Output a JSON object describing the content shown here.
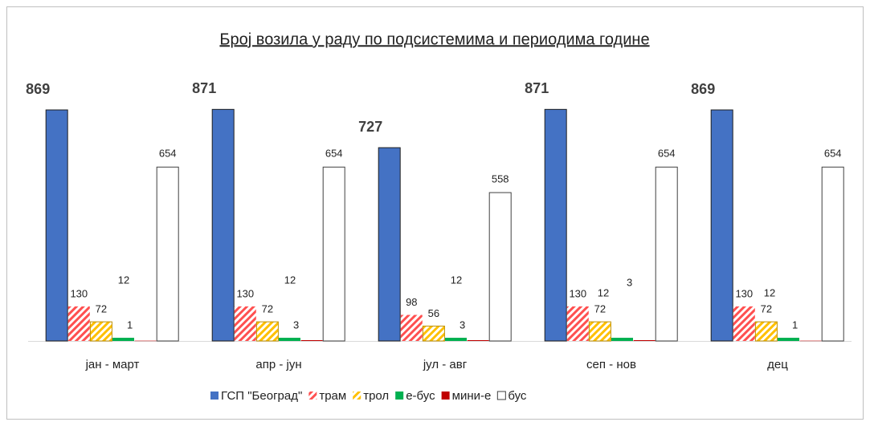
{
  "chart_data": {
    "type": "bar",
    "title": "Број возила у раду по подсистемима и периодима године",
    "categories": [
      "јан - март",
      "апр - јун",
      "јул - авг",
      "сеп - нов",
      "дец"
    ],
    "series": [
      {
        "name": "ГСП \"Београд\"",
        "color": "#4472c4",
        "values": [
          869,
          871,
          727,
          871,
          869
        ]
      },
      {
        "name": "трам",
        "color": "#ff5050",
        "pattern": "hatch",
        "values": [
          130,
          130,
          98,
          130,
          130
        ]
      },
      {
        "name": "трол",
        "color": "#ffc000",
        "pattern": "hatch",
        "values": [
          72,
          72,
          56,
          72,
          72
        ]
      },
      {
        "name": "е-бус",
        "color": "#00b050",
        "values": [
          12,
          12,
          12,
          12,
          12
        ]
      },
      {
        "name": "мини-е",
        "color": "#c00000",
        "values": [
          1,
          3,
          3,
          3,
          1
        ]
      },
      {
        "name": "бус",
        "color": "#ffffff",
        "values": [
          654,
          654,
          558,
          654,
          654
        ]
      }
    ],
    "legend": "bottom"
  }
}
